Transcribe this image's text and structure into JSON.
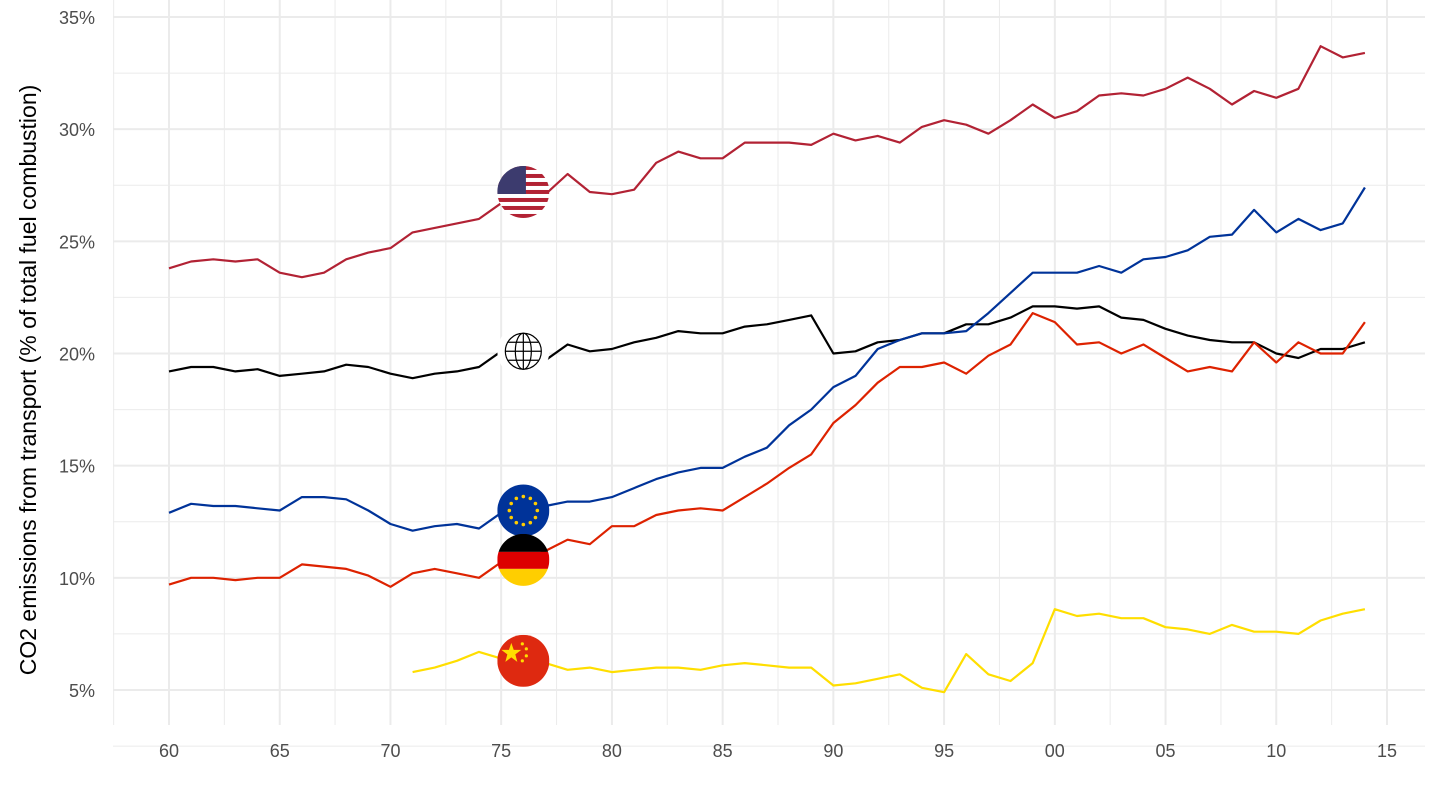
{
  "chart_data": {
    "type": "line",
    "title": "",
    "xlabel": "",
    "ylabel": "CO2 emissions from transport (% of total fuel combustion)",
    "xlim": [
      1957.5,
      2016.5
    ],
    "ylim": [
      3.5,
      35.5
    ],
    "x_ticks": [
      1960,
      1965,
      1970,
      1975,
      1980,
      1985,
      1990,
      1995,
      2000,
      2005,
      2010,
      2015
    ],
    "x_tick_labels": [
      "60",
      "65",
      "70",
      "75",
      "80",
      "85",
      "90",
      "95",
      "00",
      "05",
      "10",
      "15"
    ],
    "y_ticks": [
      5,
      10,
      15,
      20,
      25,
      30,
      35
    ],
    "y_tick_labels": [
      "5%",
      "10%",
      "15%",
      "20%",
      "25%",
      "30%",
      "35%"
    ],
    "grid": true,
    "legend": "flag icons at 1976",
    "series": [
      {
        "name": "United States",
        "color": "#B22234",
        "icon": "us-flag-icon",
        "start": 1960,
        "values": [
          23.8,
          24.1,
          24.2,
          24.1,
          24.2,
          23.6,
          23.4,
          23.6,
          24.2,
          24.5,
          24.7,
          25.4,
          25.6,
          25.8,
          26.0,
          26.7,
          27.2,
          27.1,
          28.0,
          27.2,
          27.1,
          27.3,
          28.5,
          29.0,
          28.7,
          28.7,
          29.4,
          29.4,
          29.4,
          29.3,
          29.8,
          29.5,
          29.7,
          29.4,
          30.1,
          30.4,
          30.2,
          29.8,
          30.4,
          31.1,
          30.5,
          30.8,
          31.5,
          31.6,
          31.5,
          31.8,
          32.3,
          31.8,
          31.1,
          31.7,
          31.4,
          31.8,
          33.7,
          33.2,
          33.4
        ]
      },
      {
        "name": "World",
        "color": "#000000",
        "icon": "globe-icon",
        "start": 1960,
        "values": [
          19.2,
          19.4,
          19.4,
          19.2,
          19.3,
          19.0,
          19.1,
          19.2,
          19.5,
          19.4,
          19.1,
          18.9,
          19.1,
          19.2,
          19.4,
          20.1,
          20.1,
          19.7,
          20.4,
          20.1,
          20.2,
          20.5,
          20.7,
          21.0,
          20.9,
          20.9,
          21.2,
          21.3,
          21.5,
          21.7,
          20.0,
          20.1,
          20.5,
          20.6,
          20.9,
          20.9,
          21.3,
          21.3,
          21.6,
          22.1,
          22.1,
          22.0,
          22.1,
          21.6,
          21.5,
          21.1,
          20.8,
          20.6,
          20.5,
          20.5,
          20.0,
          19.8,
          20.2,
          20.2,
          20.5
        ]
      },
      {
        "name": "European Union",
        "color": "#003399",
        "icon": "eu-flag-icon",
        "start": 1960,
        "values": [
          12.9,
          13.3,
          13.2,
          13.2,
          13.1,
          13.0,
          13.6,
          13.6,
          13.5,
          13.0,
          12.4,
          12.1,
          12.3,
          12.4,
          12.2,
          12.9,
          13.0,
          13.2,
          13.4,
          13.4,
          13.6,
          14.0,
          14.4,
          14.7,
          14.9,
          14.9,
          15.4,
          15.8,
          16.8,
          17.5,
          18.5,
          19.0,
          20.2,
          20.6,
          20.9,
          20.9,
          21.0,
          21.8,
          22.7,
          23.6,
          23.6,
          23.6,
          23.9,
          23.6,
          24.2,
          24.3,
          24.6,
          25.2,
          25.3,
          26.4,
          25.4,
          26.0,
          25.5,
          25.8,
          27.4
        ]
      },
      {
        "name": "Germany",
        "color": "#DD2200",
        "icon": "germany-flag-icon",
        "start": 1960,
        "values": [
          9.7,
          10.0,
          10.0,
          9.9,
          10.0,
          10.0,
          10.6,
          10.5,
          10.4,
          10.1,
          9.6,
          10.2,
          10.4,
          10.2,
          10.0,
          10.7,
          10.8,
          11.2,
          11.7,
          11.5,
          12.3,
          12.3,
          12.8,
          13.0,
          13.1,
          13.0,
          13.6,
          14.2,
          14.9,
          15.5,
          16.9,
          17.7,
          18.7,
          19.4,
          19.4,
          19.6,
          19.1,
          19.9,
          20.4,
          21.8,
          21.4,
          20.4,
          20.5,
          20.0,
          20.4,
          19.8,
          19.2,
          19.4,
          19.2,
          20.5,
          19.6,
          20.5,
          20.0,
          20.0,
          21.4
        ]
      },
      {
        "name": "China",
        "color": "#FFDE00",
        "icon": "china-flag-icon",
        "start": 1971,
        "values": [
          5.8,
          6.0,
          6.3,
          6.7,
          6.4,
          6.3,
          6.2,
          5.9,
          6.0,
          5.8,
          5.9,
          6.0,
          6.0,
          5.9,
          6.1,
          6.2,
          6.1,
          6.0,
          6.0,
          5.2,
          5.3,
          5.5,
          5.7,
          5.1,
          4.9,
          6.6,
          5.7,
          5.4,
          6.2,
          8.6,
          8.3,
          8.4,
          8.2,
          8.2,
          7.8,
          7.7,
          7.5,
          7.9,
          7.6,
          7.6,
          7.5,
          8.1,
          8.4,
          8.6
        ]
      }
    ],
    "icon_year": 1976
  }
}
